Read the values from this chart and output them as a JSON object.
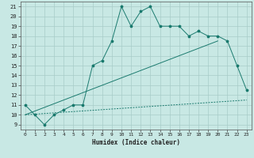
{
  "xlabel": "Humidex (Indice chaleur)",
  "color": "#1a7a6e",
  "bg_color": "#c8e8e4",
  "grid_color": "#a8ccc8",
  "xlim": [
    -0.5,
    23.5
  ],
  "ylim": [
    8.5,
    21.5
  ],
  "yticks": [
    9,
    10,
    11,
    12,
    13,
    14,
    15,
    16,
    17,
    18,
    19,
    20,
    21
  ],
  "xticks": [
    0,
    1,
    2,
    3,
    4,
    5,
    6,
    7,
    8,
    9,
    10,
    11,
    12,
    13,
    14,
    15,
    16,
    17,
    18,
    19,
    20,
    21,
    22,
    23
  ],
  "line1_x": [
    0,
    1,
    2,
    3,
    4,
    5,
    6,
    7,
    8,
    9,
    10,
    11,
    12,
    13,
    14,
    15,
    16,
    17,
    18,
    19,
    20,
    21,
    22,
    23
  ],
  "line1_y": [
    11,
    10,
    9,
    10,
    10.5,
    11,
    11,
    15,
    15.5,
    17.5,
    21,
    19,
    20.5,
    21,
    19,
    19,
    19,
    18,
    18.5,
    18,
    18,
    17.5,
    15,
    12.5
  ],
  "line2_x": [
    0,
    20
  ],
  "line2_y": [
    10,
    17.5
  ],
  "line3_x": [
    0,
    23
  ],
  "line3_y": [
    10,
    11.5
  ]
}
